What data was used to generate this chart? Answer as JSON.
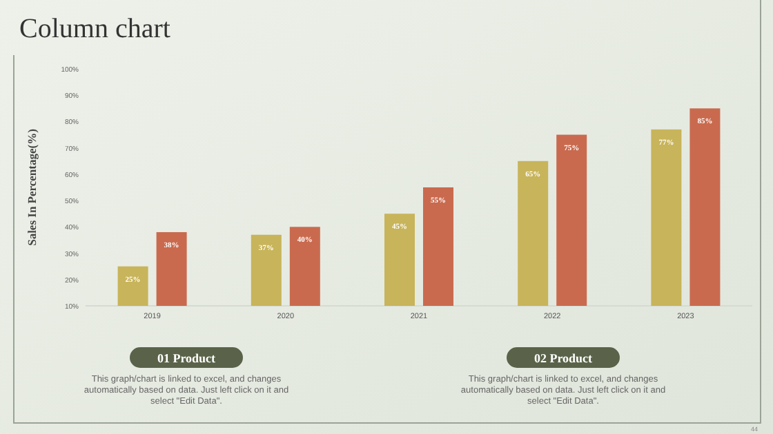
{
  "chart_data": {
    "type": "bar",
    "title": "Column chart",
    "ylabel": "Sales In Percentage(%)",
    "categories": [
      "2019",
      "2020",
      "2021",
      "2022",
      "2023"
    ],
    "series": [
      {
        "color": "#c8b45a",
        "values": [
          25,
          37,
          45,
          65,
          77
        ],
        "value_labels": [
          "25%",
          "37%",
          "45%",
          "65%",
          "77%"
        ]
      },
      {
        "color": "#c96a4e",
        "values": [
          38,
          40,
          55,
          75,
          85
        ],
        "value_labels": [
          "38%",
          "40%",
          "55%",
          "75%",
          "85%"
        ]
      }
    ],
    "ylim": [
      10,
      100
    ],
    "yticks": [
      {
        "value": 10,
        "label": "10%"
      },
      {
        "value": 20,
        "label": "20%"
      },
      {
        "value": 30,
        "label": "30%"
      },
      {
        "value": 40,
        "label": "40%"
      },
      {
        "value": 50,
        "label": "50%"
      },
      {
        "value": 60,
        "label": "60%"
      },
      {
        "value": 70,
        "label": "70%"
      },
      {
        "value": 80,
        "label": "80%"
      },
      {
        "value": 90,
        "label": "90%"
      },
      {
        "value": 100,
        "label": "100%"
      }
    ],
    "grid": false,
    "annotations": [
      "01 Product",
      "This graph/chart is linked to excel, and changes automatically based on data. Just left click on it and select \"Edit Data\".",
      "02 Product",
      "This graph/chart is linked to excel, and changes automatically based on data. Just left click on it and select \"Edit Data\".",
      "44"
    ]
  }
}
